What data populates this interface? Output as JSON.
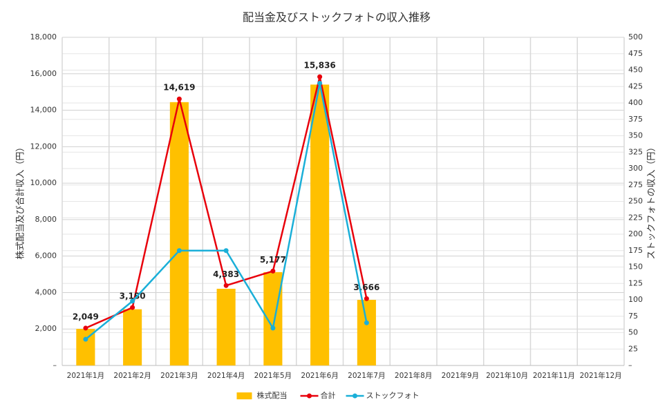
{
  "chart_data": {
    "type": "bar-line",
    "title": "配当金及びストックフォトの収入推移",
    "y_label": "株式配当及び合計収入（円）",
    "y2_label": "ストックフォトの収入（円）",
    "categories": [
      "2021年1月",
      "2021年2月",
      "2021年3月",
      "2021年4月",
      "2021年5月",
      "2021年6月",
      "2021年7月",
      "2021年8月",
      "2021年9月",
      "2021年10月",
      "2021年11月",
      "2021年12月"
    ],
    "series": [
      {
        "name": "株式配当",
        "type": "bar",
        "color": "#FFC000",
        "values": [
          2009,
          3082,
          14444,
          4208,
          5120,
          15406,
          3601,
          null,
          null,
          null,
          null,
          null
        ]
      },
      {
        "name": "合計",
        "type": "line",
        "color": "#E8000B",
        "values": [
          2049,
          3180,
          14619,
          4383,
          5177,
          15836,
          3666,
          null,
          null,
          null,
          null,
          null
        ],
        "value_labels": [
          "2,049",
          "3,180",
          "14,619",
          "4,383",
          "5,177",
          "15,836",
          "3,666",
          null,
          null,
          null,
          null,
          null
        ]
      },
      {
        "name": "ストックフォト",
        "type": "line",
        "axis": "y2",
        "color": "#1AAFD8",
        "values": [
          40,
          98,
          175,
          175,
          57,
          430,
          65,
          null,
          null,
          null,
          null,
          null
        ]
      }
    ],
    "ylim": [
      0,
      18000
    ],
    "yticks": [
      {
        "value": 0,
        "label": "–"
      },
      {
        "value": 2000,
        "label": "2,000"
      },
      {
        "value": 4000,
        "label": "4,000"
      },
      {
        "value": 6000,
        "label": "6,000"
      },
      {
        "value": 8000,
        "label": "8,000"
      },
      {
        "value": 10000,
        "label": "10,000"
      },
      {
        "value": 12000,
        "label": "12,000"
      },
      {
        "value": 14000,
        "label": "14,000"
      },
      {
        "value": 16000,
        "label": "16,000"
      },
      {
        "value": 18000,
        "label": "18,000"
      }
    ],
    "y2lim": [
      0,
      500
    ],
    "y2ticks": [
      {
        "value": 0,
        "label": "–"
      },
      25,
      50,
      75,
      100,
      125,
      150,
      175,
      200,
      225,
      250,
      275,
      300,
      325,
      350,
      375,
      400,
      425,
      450,
      475,
      500
    ],
    "grid": true,
    "legend": "bottom"
  }
}
